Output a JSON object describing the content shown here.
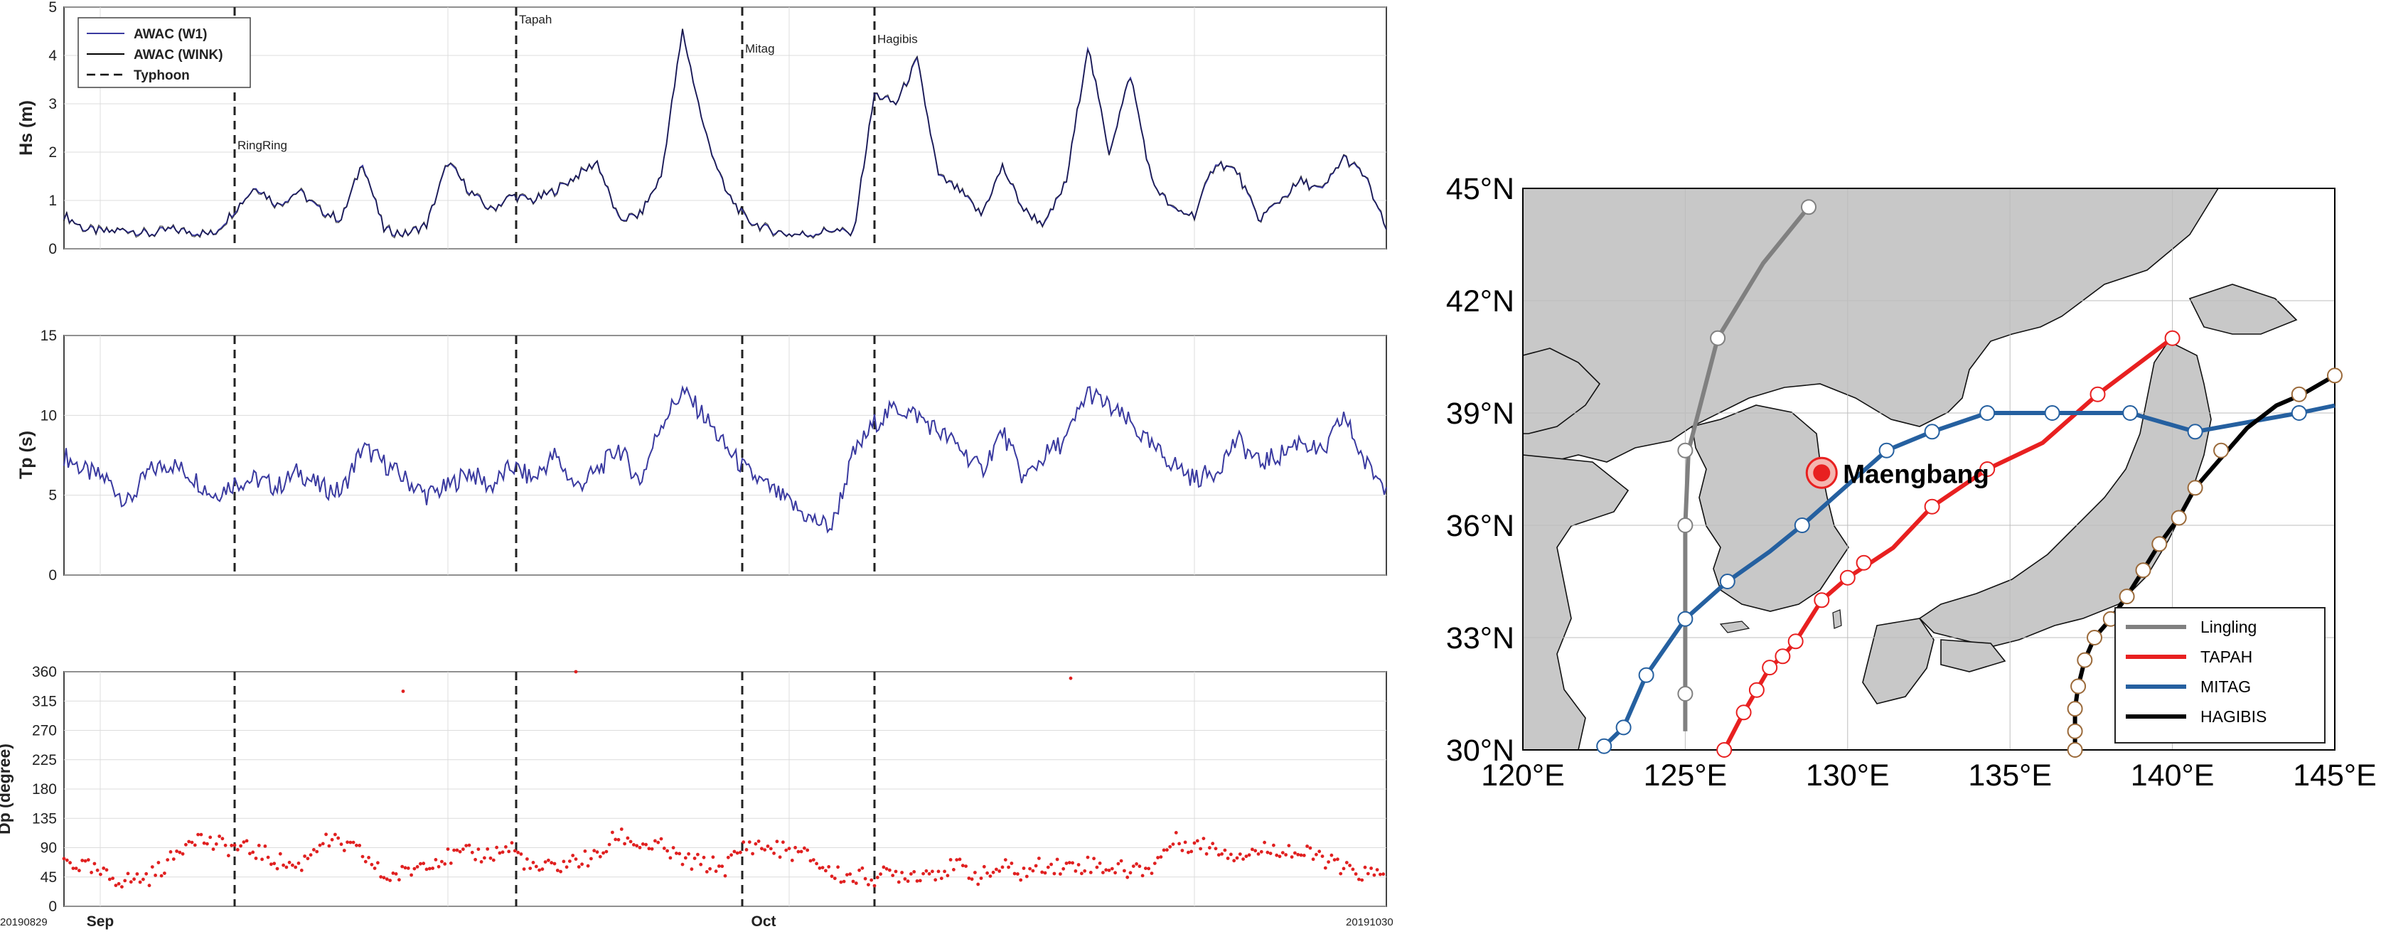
{
  "chart_data": [
    {
      "type": "line",
      "panel": "hs",
      "ylabel": "Hs (m)",
      "ylim": [
        0,
        5
      ],
      "yticks": [
        "0",
        "1",
        "2",
        "3",
        "4",
        "5"
      ],
      "grid": true,
      "legend_position": "top-left",
      "legend": [
        {
          "label": "AWAC (W1)",
          "color": "#3a3aa0",
          "style": "solid"
        },
        {
          "label": "AWAC (WINK)",
          "color": "#000000",
          "style": "solid"
        },
        {
          "label": "Typhoon",
          "color": "#000000",
          "style": "dashed"
        }
      ],
      "series": [
        {
          "name": "AWAC (W1)",
          "color": "#3a3aa0",
          "x_days": [
            0,
            1,
            2,
            3,
            4,
            5,
            6,
            7,
            8,
            9,
            10,
            11,
            12,
            13,
            14,
            15,
            16,
            17,
            18,
            19,
            20,
            21,
            22,
            23,
            24,
            25,
            26,
            27,
            28,
            29,
            30,
            31,
            32,
            33,
            34,
            35,
            36,
            37,
            38,
            39,
            40,
            41,
            42,
            43,
            44,
            45,
            46,
            47,
            48,
            49,
            50,
            51,
            52,
            53,
            54,
            55,
            56,
            57,
            58,
            59,
            60,
            61,
            62
          ],
          "y": [
            0.7,
            0.4,
            0.35,
            0.4,
            0.3,
            0.4,
            0.35,
            0.3,
            0.8,
            1.3,
            0.9,
            1.2,
            0.8,
            0.6,
            1.8,
            0.4,
            0.3,
            0.5,
            1.8,
            1.2,
            0.8,
            1.1,
            1.0,
            1.2,
            1.5,
            1.8,
            0.6,
            0.7,
            1.5,
            4.5,
            2.5,
            1.2,
            0.6,
            0.4,
            0.3,
            0.3,
            0.4,
            0.3,
            3.2,
            3.0,
            3.9,
            1.5,
            1.2,
            0.7,
            1.7,
            0.8,
            0.5,
            1.4,
            4.2,
            2.0,
            3.6,
            1.4,
            0.8,
            0.7,
            1.8,
            1.6,
            0.6,
            1.0,
            1.4,
            1.2,
            1.9,
            1.5,
            0.4
          ]
        }
      ],
      "annotations": [
        "RingRing",
        "Tapah",
        "Mitag",
        "Hagibis"
      ]
    },
    {
      "type": "line",
      "panel": "tp",
      "ylabel": "Tp (s)",
      "ylim": [
        0,
        15
      ],
      "yticks": [
        "0",
        "5",
        "10",
        "15"
      ],
      "grid": true,
      "series": [
        {
          "name": "AWAC (W1)",
          "color": "#3a3aa0",
          "x_days": [
            0,
            1,
            2,
            3,
            4,
            5,
            6,
            7,
            8,
            9,
            10,
            11,
            12,
            13,
            14,
            15,
            16,
            17,
            18,
            19,
            20,
            21,
            22,
            23,
            24,
            25,
            26,
            27,
            28,
            29,
            30,
            31,
            32,
            33,
            34,
            35,
            36,
            37,
            38,
            39,
            40,
            41,
            42,
            43,
            44,
            45,
            46,
            47,
            48,
            49,
            50,
            51,
            52,
            53,
            54,
            55,
            56,
            57,
            58,
            59,
            60,
            61,
            62
          ],
          "y": [
            7.5,
            6.5,
            6.0,
            4.5,
            6.5,
            7.0,
            6.2,
            5.0,
            5.8,
            6.0,
            5.5,
            6.5,
            5.5,
            5.2,
            8.0,
            7.0,
            6.0,
            5.0,
            5.5,
            6.5,
            5.5,
            6.8,
            6.0,
            7.5,
            5.5,
            6.5,
            8.0,
            5.8,
            9.5,
            11.5,
            10.0,
            8.0,
            6.5,
            5.5,
            4.5,
            3.5,
            3.0,
            7.5,
            9.5,
            10.5,
            10.0,
            9.0,
            8.0,
            6.5,
            9.0,
            6.0,
            7.5,
            8.5,
            11.5,
            10.5,
            9.5,
            8.0,
            7.0,
            6.0,
            6.5,
            8.5,
            7.0,
            7.5,
            8.5,
            7.5,
            10.0,
            7.0,
            5.5
          ]
        }
      ]
    },
    {
      "type": "scatter",
      "panel": "dp",
      "ylabel": "Dp (degree)",
      "ylim": [
        0,
        360
      ],
      "yticks": [
        "0",
        "45",
        "90",
        "135",
        "180",
        "225",
        "270",
        "315",
        "360"
      ],
      "grid": true,
      "series": [
        {
          "name": "AWAC (W1)",
          "color": "#e02020",
          "x_days": [
            0,
            1,
            2,
            3,
            4,
            5,
            6,
            7,
            8,
            9,
            10,
            11,
            12,
            13,
            14,
            15,
            16,
            17,
            18,
            19,
            20,
            21,
            22,
            23,
            24,
            25,
            26,
            27,
            28,
            29,
            30,
            31,
            32,
            33,
            34,
            35,
            36,
            37,
            38,
            39,
            40,
            41,
            42,
            43,
            44,
            45,
            46,
            47,
            48,
            49,
            50,
            51,
            52,
            53,
            54,
            55,
            56,
            57,
            58,
            59,
            60,
            61,
            62
          ],
          "y": [
            70,
            60,
            45,
            40,
            45,
            70,
            110,
            95,
            90,
            85,
            70,
            60,
            100,
            95,
            80,
            45,
            50,
            70,
            75,
            80,
            80,
            90,
            55,
            60,
            70,
            75,
            110,
            95,
            90,
            70,
            65,
            60,
            95,
            90,
            85,
            75,
            50,
            45,
            45,
            50,
            50,
            55,
            60,
            45,
            60,
            50,
            65,
            60,
            65,
            60,
            55,
            60,
            100,
            95,
            90,
            80,
            85,
            90,
            80,
            75,
            55,
            50,
            45
          ]
        }
      ],
      "x_tick_labels": [
        "20190829",
        "Sep",
        "Oct",
        "20191030"
      ],
      "outliers": [
        {
          "x_days": 15.9,
          "y": 330
        },
        {
          "x_days": 47.2,
          "y": 350
        },
        {
          "x_days": 24.0,
          "y": 360
        }
      ]
    },
    {
      "type": "line",
      "panel": "map",
      "xlim": [
        120,
        145
      ],
      "ylim": [
        30,
        45
      ],
      "x_tick_labels": [
        "120°E",
        "125°E",
        "130°E",
        "135°E",
        "140°E",
        "145°E"
      ],
      "y_tick_labels": [
        "30°N",
        "33°N",
        "36°N",
        "39°N",
        "42°N",
        "45°N"
      ],
      "legend_position": "bottom-right",
      "site": {
        "label": "Maengbang",
        "lon": 129.2,
        "lat": 37.4
      },
      "series": [
        {
          "name": "Lingling",
          "color": "#808080",
          "lon": [
            125.0,
            125.0,
            125.0,
            125.1,
            126.0,
            127.4,
            128.8
          ],
          "lat": [
            30.5,
            33.5,
            36.0,
            38.0,
            41.0,
            43.0,
            44.5
          ],
          "markers_lon": [
            125.0,
            125.0,
            125.0,
            126.0,
            128.8
          ],
          "markers_lat": [
            31.5,
            36.0,
            38.0,
            41.0,
            44.5
          ]
        },
        {
          "name": "TAPAH",
          "color": "#e82020",
          "lon": [
            126.2,
            126.8,
            127.2,
            127.6,
            128.0,
            128.4,
            129.2,
            130.0,
            130.7,
            131.4,
            132.6,
            134.3,
            136.0,
            137.7,
            140.0
          ],
          "lat": [
            30.0,
            31.0,
            31.6,
            32.2,
            32.5,
            32.9,
            34.0,
            34.6,
            35.0,
            35.4,
            36.5,
            37.5,
            38.2,
            39.5,
            41.0
          ],
          "markers_lon": [
            126.2,
            126.8,
            127.2,
            127.6,
            128.0,
            128.4,
            129.2,
            130.0,
            130.5,
            132.6,
            134.3,
            137.7,
            140.0
          ],
          "markers_lat": [
            30.0,
            31.0,
            31.6,
            32.2,
            32.5,
            32.9,
            34.0,
            34.6,
            35.0,
            36.5,
            37.5,
            39.5,
            41.0
          ]
        },
        {
          "name": "MITAG",
          "color": "#2560a0",
          "lon": [
            122.5,
            123.1,
            123.8,
            125.0,
            126.3,
            127.6,
            128.6,
            129.9,
            131.2,
            132.6,
            134.3,
            136.3,
            138.7,
            140.7,
            143.9,
            145.0
          ],
          "lat": [
            30.1,
            30.6,
            32.0,
            33.5,
            34.5,
            35.3,
            36.0,
            37.0,
            38.0,
            38.5,
            39.0,
            39.0,
            39.0,
            38.5,
            39.0,
            39.2
          ],
          "markers_lon": [
            122.5,
            123.1,
            123.8,
            125.0,
            126.3,
            128.6,
            131.2,
            132.6,
            134.3,
            136.3,
            138.7,
            140.7,
            143.9
          ],
          "markers_lat": [
            30.1,
            30.6,
            32.0,
            33.5,
            34.5,
            36.0,
            38.0,
            38.5,
            39.0,
            39.0,
            39.0,
            38.5,
            39.0
          ]
        },
        {
          "name": "HAGIBIS",
          "color": "#000000",
          "lon": [
            137.0,
            137.0,
            137.0,
            137.1,
            137.3,
            137.6,
            138.1,
            138.6,
            139.1,
            139.6,
            140.2,
            140.7,
            141.5,
            142.3,
            143.2,
            144.0,
            145.0
          ],
          "lat": [
            30.0,
            30.5,
            31.1,
            31.7,
            32.4,
            33.0,
            33.5,
            34.1,
            34.8,
            35.5,
            36.2,
            37.0,
            37.8,
            38.6,
            39.2,
            39.5,
            40.0
          ],
          "markers_lon": [
            137.0,
            137.0,
            137.0,
            137.1,
            137.3,
            137.6,
            138.1,
            138.6,
            139.1,
            139.6,
            140.2,
            140.7,
            141.5,
            143.9,
            145.0
          ],
          "markers_lat": [
            30.0,
            30.5,
            31.1,
            31.7,
            32.4,
            33.0,
            33.5,
            34.1,
            34.8,
            35.5,
            36.2,
            37.0,
            38.0,
            39.5,
            40.0
          ]
        }
      ]
    }
  ],
  "colors": {
    "w1": "#3a3aa0",
    "wink": "#000000",
    "dp": "#e02020",
    "land": "#c8c8c8"
  }
}
